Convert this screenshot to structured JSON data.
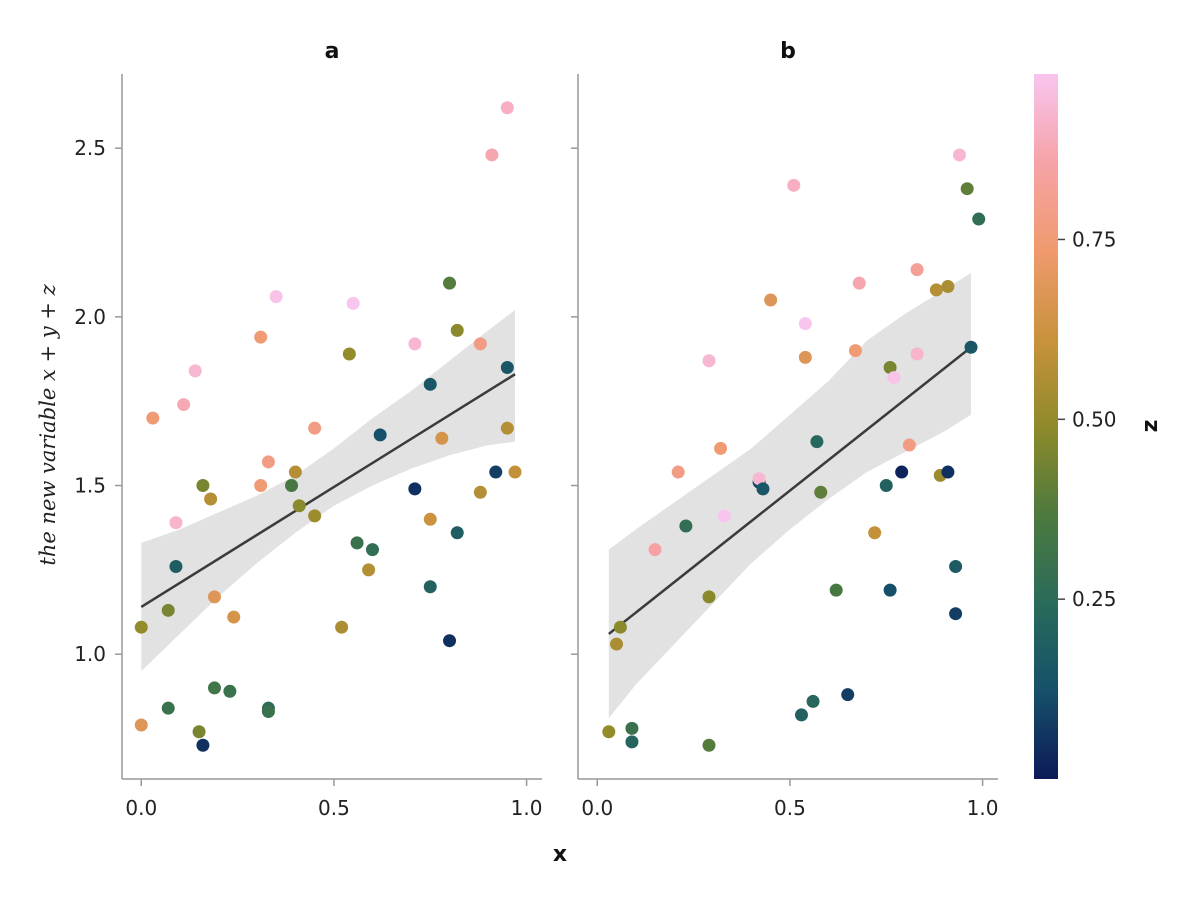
{
  "chart_data": {
    "type": "scatter",
    "panels": [
      {
        "title": "a",
        "points": [
          {
            "x": 0.0,
            "y": 1.08,
            "z": 0.5
          },
          {
            "x": 0.03,
            "y": 1.7,
            "z": 0.75
          },
          {
            "x": 0.0,
            "y": 0.79,
            "z": 0.68
          },
          {
            "x": 0.07,
            "y": 0.84,
            "z": 0.3
          },
          {
            "x": 0.07,
            "y": 1.13,
            "z": 0.45
          },
          {
            "x": 0.09,
            "y": 1.39,
            "z": 0.92
          },
          {
            "x": 0.09,
            "y": 1.26,
            "z": 0.18
          },
          {
            "x": 0.11,
            "y": 1.74,
            "z": 0.88
          },
          {
            "x": 0.14,
            "y": 1.84,
            "z": 0.93
          },
          {
            "x": 0.15,
            "y": 0.77,
            "z": 0.45
          },
          {
            "x": 0.16,
            "y": 0.73,
            "z": 0.05
          },
          {
            "x": 0.16,
            "y": 1.5,
            "z": 0.45
          },
          {
            "x": 0.18,
            "y": 1.46,
            "z": 0.57
          },
          {
            "x": 0.19,
            "y": 1.17,
            "z": 0.68
          },
          {
            "x": 0.19,
            "y": 0.9,
            "z": 0.33
          },
          {
            "x": 0.23,
            "y": 0.89,
            "z": 0.3
          },
          {
            "x": 0.24,
            "y": 1.11,
            "z": 0.65
          },
          {
            "x": 0.31,
            "y": 1.94,
            "z": 0.75
          },
          {
            "x": 0.31,
            "y": 1.5,
            "z": 0.75
          },
          {
            "x": 0.33,
            "y": 1.57,
            "z": 0.78
          },
          {
            "x": 0.33,
            "y": 0.84,
            "z": 0.25
          },
          {
            "x": 0.33,
            "y": 0.83,
            "z": 0.3
          },
          {
            "x": 0.35,
            "y": 2.06,
            "z": 0.97
          },
          {
            "x": 0.39,
            "y": 1.5,
            "z": 0.35
          },
          {
            "x": 0.4,
            "y": 1.54,
            "z": 0.57
          },
          {
            "x": 0.41,
            "y": 1.44,
            "z": 0.48
          },
          {
            "x": 0.45,
            "y": 1.67,
            "z": 0.78
          },
          {
            "x": 0.45,
            "y": 1.41,
            "z": 0.52
          },
          {
            "x": 0.52,
            "y": 1.08,
            "z": 0.55
          },
          {
            "x": 0.54,
            "y": 1.89,
            "z": 0.5
          },
          {
            "x": 0.55,
            "y": 2.04,
            "z": 0.99
          },
          {
            "x": 0.56,
            "y": 1.33,
            "z": 0.3
          },
          {
            "x": 0.59,
            "y": 1.25,
            "z": 0.57
          },
          {
            "x": 0.6,
            "y": 1.31,
            "z": 0.27
          },
          {
            "x": 0.62,
            "y": 1.65,
            "z": 0.12
          },
          {
            "x": 0.71,
            "y": 1.49,
            "z": 0.05
          },
          {
            "x": 0.71,
            "y": 1.92,
            "z": 0.93
          },
          {
            "x": 0.75,
            "y": 1.8,
            "z": 0.15
          },
          {
            "x": 0.75,
            "y": 1.4,
            "z": 0.62
          },
          {
            "x": 0.75,
            "y": 1.2,
            "z": 0.2
          },
          {
            "x": 0.78,
            "y": 1.64,
            "z": 0.65
          },
          {
            "x": 0.8,
            "y": 1.04,
            "z": 0.05
          },
          {
            "x": 0.8,
            "y": 2.1,
            "z": 0.38
          },
          {
            "x": 0.82,
            "y": 1.96,
            "z": 0.48
          },
          {
            "x": 0.82,
            "y": 1.36,
            "z": 0.18
          },
          {
            "x": 0.88,
            "y": 1.48,
            "z": 0.57
          },
          {
            "x": 0.88,
            "y": 1.92,
            "z": 0.78
          },
          {
            "x": 0.91,
            "y": 2.48,
            "z": 0.87
          },
          {
            "x": 0.92,
            "y": 1.54,
            "z": 0.08
          },
          {
            "x": 0.95,
            "y": 2.62,
            "z": 0.9
          },
          {
            "x": 0.95,
            "y": 1.85,
            "z": 0.15
          },
          {
            "x": 0.95,
            "y": 1.67,
            "z": 0.57
          },
          {
            "x": 0.97,
            "y": 1.54,
            "z": 0.6
          }
        ],
        "fit": {
          "x0": 0.0,
          "y0": 1.14,
          "x1": 0.97,
          "y1": 1.83
        },
        "band": [
          [
            0.0,
            1.33,
            0.95
          ],
          [
            0.1,
            1.37,
            1.06
          ],
          [
            0.2,
            1.42,
            1.17
          ],
          [
            0.3,
            1.47,
            1.27
          ],
          [
            0.4,
            1.53,
            1.36
          ],
          [
            0.5,
            1.61,
            1.44
          ],
          [
            0.6,
            1.7,
            1.5
          ],
          [
            0.7,
            1.78,
            1.55
          ],
          [
            0.8,
            1.87,
            1.59
          ],
          [
            0.9,
            1.96,
            1.62
          ],
          [
            0.97,
            2.02,
            1.63
          ]
        ]
      },
      {
        "title": "b",
        "points": [
          {
            "x": 0.03,
            "y": 0.77,
            "z": 0.5
          },
          {
            "x": 0.05,
            "y": 1.03,
            "z": 0.55
          },
          {
            "x": 0.06,
            "y": 1.08,
            "z": 0.48
          },
          {
            "x": 0.09,
            "y": 0.74,
            "z": 0.22
          },
          {
            "x": 0.09,
            "y": 0.78,
            "z": 0.3
          },
          {
            "x": 0.15,
            "y": 1.31,
            "z": 0.85
          },
          {
            "x": 0.21,
            "y": 1.54,
            "z": 0.78
          },
          {
            "x": 0.23,
            "y": 1.38,
            "z": 0.27
          },
          {
            "x": 0.29,
            "y": 0.73,
            "z": 0.38
          },
          {
            "x": 0.29,
            "y": 1.17,
            "z": 0.48
          },
          {
            "x": 0.29,
            "y": 1.87,
            "z": 0.93
          },
          {
            "x": 0.32,
            "y": 1.61,
            "z": 0.75
          },
          {
            "x": 0.33,
            "y": 1.41,
            "z": 0.98
          },
          {
            "x": 0.42,
            "y": 1.51,
            "z": 0.1
          },
          {
            "x": 0.42,
            "y": 1.52,
            "z": 0.93
          },
          {
            "x": 0.43,
            "y": 1.49,
            "z": 0.15
          },
          {
            "x": 0.45,
            "y": 2.05,
            "z": 0.68
          },
          {
            "x": 0.51,
            "y": 2.39,
            "z": 0.9
          },
          {
            "x": 0.53,
            "y": 0.82,
            "z": 0.2
          },
          {
            "x": 0.54,
            "y": 1.88,
            "z": 0.68
          },
          {
            "x": 0.54,
            "y": 1.98,
            "z": 0.98
          },
          {
            "x": 0.56,
            "y": 0.86,
            "z": 0.23
          },
          {
            "x": 0.57,
            "y": 1.63,
            "z": 0.23
          },
          {
            "x": 0.58,
            "y": 1.48,
            "z": 0.4
          },
          {
            "x": 0.62,
            "y": 1.19,
            "z": 0.35
          },
          {
            "x": 0.65,
            "y": 0.88,
            "z": 0.08
          },
          {
            "x": 0.67,
            "y": 1.9,
            "z": 0.75
          },
          {
            "x": 0.68,
            "y": 2.1,
            "z": 0.87
          },
          {
            "x": 0.72,
            "y": 1.36,
            "z": 0.6
          },
          {
            "x": 0.75,
            "y": 1.5,
            "z": 0.2
          },
          {
            "x": 0.76,
            "y": 1.19,
            "z": 0.12
          },
          {
            "x": 0.76,
            "y": 1.85,
            "z": 0.45
          },
          {
            "x": 0.77,
            "y": 1.82,
            "z": 0.97
          },
          {
            "x": 0.79,
            "y": 1.54,
            "z": 0.02
          },
          {
            "x": 0.81,
            "y": 1.62,
            "z": 0.78
          },
          {
            "x": 0.83,
            "y": 2.14,
            "z": 0.82
          },
          {
            "x": 0.83,
            "y": 1.89,
            "z": 0.92
          },
          {
            "x": 0.88,
            "y": 2.08,
            "z": 0.57
          },
          {
            "x": 0.89,
            "y": 1.53,
            "z": 0.52
          },
          {
            "x": 0.91,
            "y": 2.09,
            "z": 0.55
          },
          {
            "x": 0.91,
            "y": 1.54,
            "z": 0.05
          },
          {
            "x": 0.93,
            "y": 1.26,
            "z": 0.17
          },
          {
            "x": 0.93,
            "y": 1.12,
            "z": 0.08
          },
          {
            "x": 0.94,
            "y": 2.48,
            "z": 0.93
          },
          {
            "x": 0.96,
            "y": 2.38,
            "z": 0.4
          },
          {
            "x": 0.97,
            "y": 1.91,
            "z": 0.15
          },
          {
            "x": 0.99,
            "y": 2.29,
            "z": 0.27
          }
        ],
        "fit": {
          "x0": 0.03,
          "y0": 1.06,
          "x1": 0.97,
          "y1": 1.91
        },
        "band": [
          [
            0.03,
            1.31,
            0.81
          ],
          [
            0.1,
            1.37,
            0.91
          ],
          [
            0.2,
            1.45,
            1.03
          ],
          [
            0.3,
            1.53,
            1.15
          ],
          [
            0.4,
            1.61,
            1.27
          ],
          [
            0.5,
            1.71,
            1.37
          ],
          [
            0.6,
            1.81,
            1.46
          ],
          [
            0.7,
            1.93,
            1.54
          ],
          [
            0.8,
            2.01,
            1.6
          ],
          [
            0.9,
            2.08,
            1.66
          ],
          [
            0.97,
            2.13,
            1.71
          ]
        ]
      }
    ],
    "xlabel": "x",
    "ylabel": "the new variable x + y + z",
    "xlim": [
      -0.05,
      1.04
    ],
    "ylim": [
      0.63,
      2.72
    ],
    "xticks": [
      0.0,
      0.5,
      1.0
    ],
    "xtick_labels": [
      "0.0",
      "0.5",
      "1.0"
    ],
    "yticks": [
      1.0,
      1.5,
      2.0,
      2.5
    ],
    "ytick_labels": [
      "1.0",
      "1.5",
      "2.0",
      "2.5"
    ],
    "colorbar": {
      "label": "z",
      "range": [
        0.0,
        0.98
      ],
      "ticks": [
        0.25,
        0.5,
        0.75
      ],
      "tick_labels": [
        "0.25",
        "0.50",
        "0.75"
      ],
      "colormap": [
        "#0c1a57",
        "#16506a",
        "#2a6b5a",
        "#4d7a3e",
        "#8f8a2a",
        "#c9923c",
        "#f09a6e",
        "#f6a3a8",
        "#f8c5ef"
      ]
    },
    "fit_line_color": "#3b3b3b",
    "band_color": "#e2e2e2",
    "grid": false,
    "legend": "none"
  }
}
